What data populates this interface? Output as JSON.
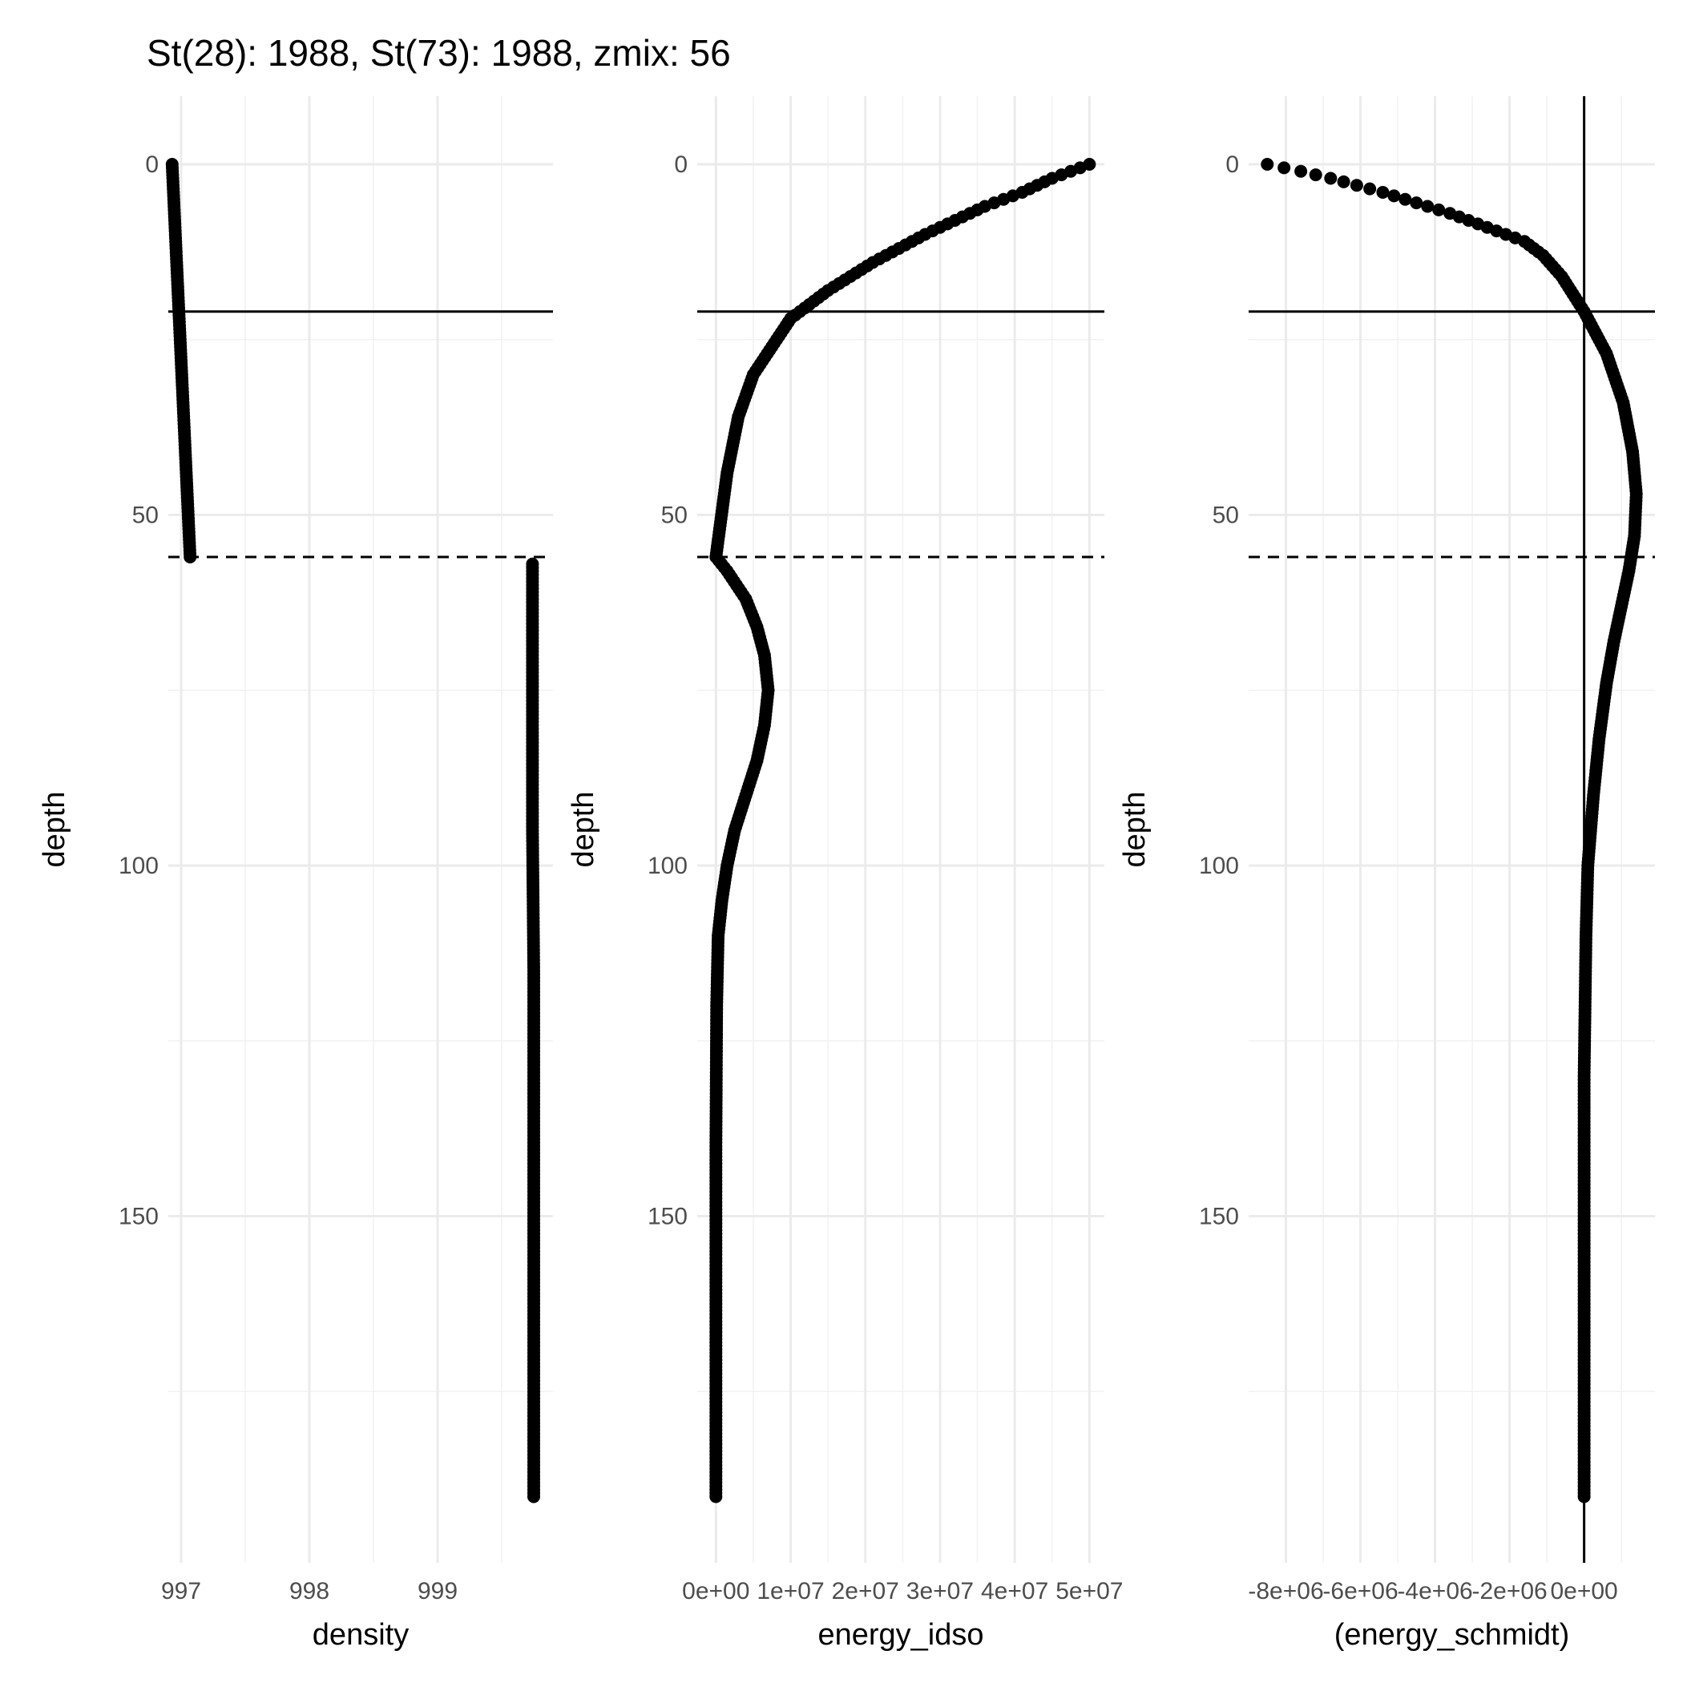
{
  "title": "St(28): 1988, St(73): 1988, zmix: 56",
  "chart_data": [
    {
      "type": "scatter",
      "xlabel": "density",
      "ylabel": "depth",
      "y_reversed": true,
      "xlim": [
        996.9,
        999.9
      ],
      "ylim": [
        0,
        191
      ],
      "x_ticks": [
        997,
        998,
        999
      ],
      "x_tick_labels": [
        "997",
        "998",
        "999"
      ],
      "y_ticks": [
        0,
        50,
        100,
        150
      ],
      "y_tick_labels": [
        "0",
        "50",
        "100",
        "150"
      ],
      "hlines_solid": [
        21
      ],
      "hlines_dashed": [
        56
      ],
      "vlines_solid": [],
      "grid": true,
      "series": [
        {
          "x": [
            996.93,
            996.95,
            996.97,
            996.99,
            997.01,
            997.03,
            997.05,
            997.07
          ],
          "y": [
            0,
            8,
            16,
            24,
            32,
            40,
            48,
            56
          ]
        },
        {
          "x": [
            999.74,
            999.74,
            999.74,
            999.75,
            999.75,
            999.75,
            999.75,
            999.75
          ],
          "y": [
            57,
            75,
            95,
            115,
            135,
            155,
            175,
            190
          ]
        }
      ]
    },
    {
      "type": "scatter",
      "xlabel": "energy_idso",
      "ylabel": "depth",
      "y_reversed": true,
      "xlim": [
        -2500000,
        52000000
      ],
      "ylim": [
        0,
        191
      ],
      "x_ticks": [
        0,
        10000000,
        20000000,
        30000000,
        40000000,
        50000000
      ],
      "x_tick_labels": [
        "0e+00",
        "1e+07",
        "2e+07",
        "3e+07",
        "4e+07",
        "5e+07"
      ],
      "y_ticks": [
        0,
        50,
        100,
        150
      ],
      "y_tick_labels": [
        "0",
        "50",
        "100",
        "150"
      ],
      "hlines_solid": [
        21
      ],
      "hlines_dashed": [
        56
      ],
      "vlines_solid": [],
      "grid": true,
      "series": [
        {
          "x": [
            50000000,
            45000000,
            41000000,
            36000000,
            32000000,
            28000000,
            24500000,
            21000000,
            18000000,
            15000000,
            12500000,
            10000000,
            7500000,
            5000000,
            3000000,
            1500000,
            500000,
            0,
            1500000,
            4000000,
            5500000,
            6500000,
            7000000,
            6500000,
            5500000,
            4000000,
            2500000,
            1500000,
            800000,
            300000,
            100000,
            50000,
            0,
            0,
            0
          ],
          "y": [
            0,
            2,
            4,
            6,
            8,
            10,
            12,
            14,
            16,
            18,
            20,
            22,
            26,
            30,
            36,
            44,
            52,
            56,
            58,
            62,
            66,
            70,
            75,
            80,
            85,
            90,
            95,
            100,
            105,
            110,
            120,
            130,
            140,
            160,
            190
          ]
        }
      ]
    },
    {
      "type": "scatter",
      "xlabel": "(energy_schmidt)",
      "ylabel": "depth",
      "y_reversed": true,
      "xlim": [
        -9000000,
        1900000
      ],
      "ylim": [
        0,
        191
      ],
      "x_ticks": [
        -8000000,
        -6000000,
        -4000000,
        -2000000,
        0
      ],
      "x_tick_labels": [
        "-8e+06",
        "-6e+06",
        "-4e+06",
        "-2e+06",
        "0e+00"
      ],
      "y_ticks": [
        0,
        50,
        100,
        150
      ],
      "y_tick_labels": [
        "0",
        "50",
        "100",
        "150"
      ],
      "hlines_solid": [
        21
      ],
      "hlines_dashed": [
        56
      ],
      "vlines_solid": [
        0
      ],
      "grid": true,
      "series": [
        {
          "x": [
            -8500000,
            -7600000,
            -6800000,
            -6100000,
            -5400000,
            -4800000,
            -4200000,
            -3600000,
            -3100000,
            -2600000,
            -2100000,
            -1600000,
            -1100000,
            -600000,
            0,
            600000,
            1050000,
            1300000,
            1400000,
            1350000,
            1200000,
            1000000,
            800000,
            600000,
            400000,
            250000,
            100000,
            50000,
            0,
            0,
            0
          ],
          "y": [
            0,
            1,
            2,
            3,
            4,
            5,
            6,
            7,
            8,
            9,
            10,
            11,
            13,
            16,
            21,
            27,
            34,
            41,
            47,
            53,
            58,
            63,
            68,
            74,
            82,
            90,
            100,
            110,
            130,
            160,
            190
          ]
        }
      ]
    }
  ]
}
